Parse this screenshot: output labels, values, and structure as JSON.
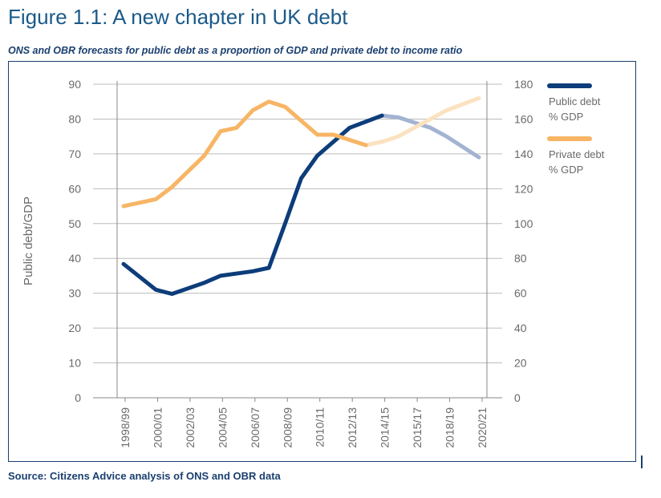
{
  "figure": {
    "title": "Figure 1.1: A new chapter in UK debt",
    "subtitle": "ONS and OBR forecasts for public debt as a proportion of GDP and private debt to income ratio",
    "source": "Source: Citizens Advice analysis of ONS and OBR data"
  },
  "colors": {
    "public_actual": "#0d3d7a",
    "public_forecast": "#a3b3d2",
    "private_actual": "#f7b565",
    "private_forecast": "#fbe2c0",
    "grid": "#bcbcbc",
    "axis_text": "#6a6a6a"
  },
  "chart_data": {
    "type": "line",
    "ylabel": "Public debt/GDP",
    "y_left": {
      "min": 0,
      "max": 90,
      "ticks": [
        0,
        10,
        20,
        30,
        40,
        50,
        60,
        70,
        80,
        90
      ]
    },
    "y_right": {
      "min": 0,
      "max": 180,
      "ticks": [
        0,
        20,
        40,
        60,
        80,
        100,
        120,
        140,
        160,
        180
      ]
    },
    "x_labels": [
      "1998/99",
      "2000/01",
      "2002/03",
      "2004/05",
      "2006/07",
      "2008/09",
      "2010/11",
      "2012/13",
      "2014/15",
      "2015/17",
      "2018/19",
      "2020/21"
    ],
    "x_range": [
      1998,
      2020
    ],
    "grid": true,
    "legend_position": "right",
    "series": [
      {
        "name": "Public debt % GDP",
        "axis": "left",
        "forecast_from": 2014,
        "points": [
          [
            1998,
            38.4
          ],
          [
            2000,
            31
          ],
          [
            2001,
            29.8
          ],
          [
            2003,
            33
          ],
          [
            2004,
            35
          ],
          [
            2006,
            36.3
          ],
          [
            2007,
            37.3
          ],
          [
            2008,
            50
          ],
          [
            2009,
            63
          ],
          [
            2010,
            69.5
          ],
          [
            2012,
            77.5
          ],
          [
            2014,
            81
          ],
          [
            2015,
            80.5
          ],
          [
            2017,
            77.5
          ],
          [
            2018,
            75
          ],
          [
            2020,
            69
          ]
        ]
      },
      {
        "name": "Private debt % GDP",
        "axis": "right",
        "forecast_from": 2013,
        "points": [
          [
            1998,
            110
          ],
          [
            2000,
            114
          ],
          [
            2001,
            121
          ],
          [
            2003,
            139
          ],
          [
            2004,
            153
          ],
          [
            2005,
            155
          ],
          [
            2006,
            165
          ],
          [
            2007,
            170
          ],
          [
            2008,
            167
          ],
          [
            2009,
            159
          ],
          [
            2010,
            151
          ],
          [
            2011,
            151
          ],
          [
            2013,
            145
          ],
          [
            2014,
            147
          ],
          [
            2015,
            150
          ],
          [
            2016,
            155
          ],
          [
            2017,
            160
          ],
          [
            2018,
            165
          ],
          [
            2020,
            172
          ]
        ]
      }
    ]
  },
  "legend": [
    {
      "line1": "Public debt",
      "line2": "% GDP"
    },
    {
      "line1": "Private debt",
      "line2": "% GDP"
    }
  ]
}
